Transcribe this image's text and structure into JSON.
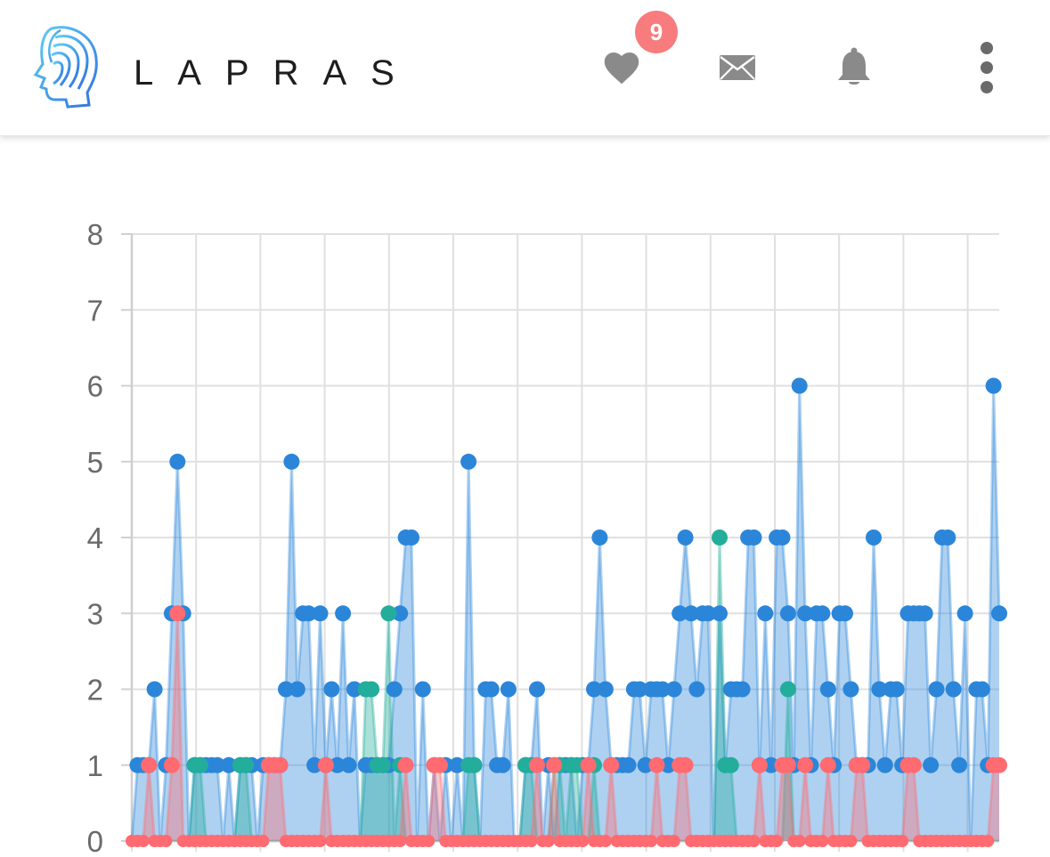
{
  "header": {
    "brand": "LAPRAS",
    "favorites_badge": "9",
    "icons": [
      "fingerprint-head-logo",
      "heart-icon",
      "mail-icon",
      "bell-icon",
      "more-vertical-icon"
    ]
  },
  "colors": {
    "series_blue": "#2b86d9",
    "series_teal": "#23ad9b",
    "series_red": "#ff6b70",
    "badge": "#f87b7e",
    "icon_gray": "#8a8a8a"
  },
  "chart_data": {
    "type": "line",
    "ylim": [
      0,
      8
    ],
    "yticks": [
      "0",
      "1",
      "2",
      "3",
      "4",
      "5",
      "6",
      "7",
      "8"
    ],
    "grid": true,
    "fill": "area",
    "series": [
      {
        "color": "#2b86d9",
        "values": [
          0,
          1,
          1,
          1,
          2,
          0,
          1,
          3,
          5,
          3,
          0,
          1,
          1,
          1,
          1,
          1,
          0,
          1,
          0,
          1,
          1,
          1,
          0,
          1,
          1,
          1,
          1,
          2,
          5,
          2,
          3,
          3,
          1,
          3,
          1,
          2,
          1,
          3,
          1,
          2,
          0,
          1,
          1,
          1,
          1,
          1,
          2,
          3,
          4,
          4,
          0,
          2,
          0,
          1,
          0,
          1,
          0,
          1,
          0,
          5,
          1,
          0,
          2,
          2,
          1,
          1,
          2,
          0,
          0,
          1,
          1,
          2,
          0,
          1,
          0,
          1,
          1,
          1,
          0,
          1,
          1,
          2,
          4,
          2,
          1,
          1,
          1,
          1,
          2,
          2,
          1,
          2,
          2,
          2,
          1,
          2,
          3,
          4,
          3,
          2,
          3,
          3,
          0,
          3,
          1,
          2,
          2,
          2,
          4,
          4,
          1,
          3,
          1,
          4,
          4,
          3,
          1,
          6,
          3,
          1,
          3,
          3,
          2,
          1,
          3,
          3,
          2,
          1,
          1,
          1,
          4,
          2,
          1,
          2,
          2,
          1,
          3,
          3,
          3,
          3,
          1,
          2,
          4,
          4,
          2,
          1,
          3,
          0,
          2,
          2,
          1,
          6,
          3
        ]
      },
      {
        "color": "#23ad9b",
        "values": [
          0,
          0,
          0,
          0,
          0,
          0,
          0,
          0,
          0,
          0,
          0,
          1,
          1,
          0,
          0,
          0,
          0,
          0,
          0,
          1,
          1,
          0,
          0,
          0,
          0,
          0,
          0,
          0,
          0,
          0,
          0,
          0,
          0,
          0,
          0,
          0,
          0,
          0,
          0,
          0,
          0,
          2,
          2,
          1,
          1,
          3,
          0,
          1,
          0,
          0,
          0,
          0,
          0,
          0,
          0,
          0,
          0,
          0,
          0,
          1,
          1,
          0,
          0,
          0,
          0,
          0,
          0,
          0,
          0,
          1,
          1,
          0,
          0,
          0,
          1,
          1,
          0,
          1,
          1,
          0,
          0,
          1,
          0,
          0,
          0,
          0,
          0,
          0,
          0,
          0,
          0,
          0,
          0,
          0,
          0,
          0,
          0,
          0,
          0,
          0,
          0,
          0,
          0,
          4,
          1,
          1,
          0,
          0,
          0,
          0,
          0,
          0,
          0,
          0,
          0,
          2,
          0,
          0,
          0,
          0,
          0,
          0,
          0,
          0,
          0,
          0,
          0,
          0,
          0,
          0,
          0,
          0,
          0,
          0,
          0,
          0,
          0,
          0,
          0,
          0,
          0,
          0,
          0,
          0,
          0,
          0,
          0,
          0,
          0,
          0,
          0,
          0,
          0
        ]
      },
      {
        "color": "#ff6b70",
        "values": [
          0,
          0,
          0,
          1,
          0,
          0,
          0,
          1,
          3,
          0,
          0,
          0,
          0,
          0,
          0,
          0,
          0,
          0,
          0,
          0,
          0,
          0,
          0,
          0,
          1,
          1,
          1,
          0,
          0,
          0,
          0,
          0,
          0,
          0,
          1,
          0,
          0,
          0,
          0,
          0,
          0,
          0,
          0,
          0,
          0,
          0,
          0,
          0,
          1,
          0,
          0,
          0,
          0,
          1,
          1,
          0,
          0,
          0,
          0,
          0,
          0,
          0,
          0,
          0,
          0,
          0,
          0,
          0,
          0,
          0,
          0,
          1,
          0,
          0,
          1,
          0,
          0,
          0,
          0,
          0,
          1,
          0,
          0,
          0,
          1,
          0,
          0,
          0,
          0,
          0,
          0,
          0,
          1,
          0,
          0,
          0,
          1,
          1,
          0,
          0,
          0,
          0,
          0,
          0,
          0,
          0,
          0,
          0,
          0,
          0,
          1,
          0,
          0,
          0,
          1,
          1,
          0,
          0,
          1,
          0,
          0,
          0,
          1,
          0,
          0,
          0,
          0,
          1,
          1,
          0,
          0,
          0,
          0,
          0,
          0,
          0,
          1,
          1,
          0,
          0,
          0,
          0,
          0,
          0,
          0,
          0,
          0,
          0,
          0,
          0,
          0,
          1,
          1
        ]
      }
    ]
  }
}
